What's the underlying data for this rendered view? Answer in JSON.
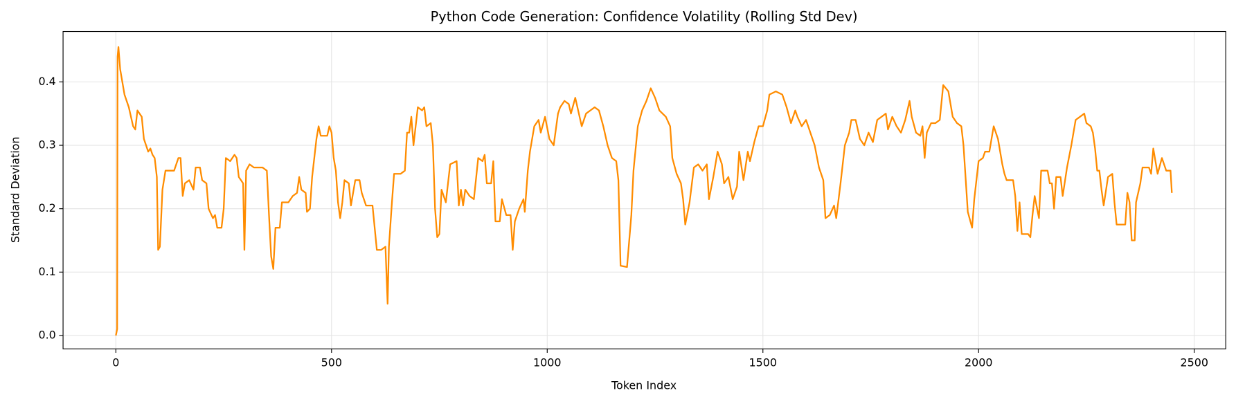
{
  "chart_data": {
    "type": "line",
    "title": "Python Code Generation: Confidence Volatility (Rolling Std Dev)",
    "x_label": "Token Index",
    "y_label": "Standard Deviation",
    "color": "#ff8c00",
    "grid": true,
    "xlim": [
      -122.4,
      2573
    ],
    "ylim": [
      -0.0211,
      0.4795
    ],
    "xticks": [
      0,
      500,
      1000,
      1500,
      2000,
      2500
    ],
    "yticks": [
      {
        "value": 0,
        "label": "0.0"
      },
      0.1,
      0.2,
      0.3,
      0.4
    ],
    "x": [
      0,
      3,
      4,
      6,
      10,
      15,
      20,
      30,
      40,
      45,
      50,
      55,
      60,
      65,
      70,
      75,
      80,
      85,
      90,
      95,
      98,
      102,
      108,
      115,
      125,
      135,
      145,
      150,
      155,
      160,
      170,
      180,
      185,
      195,
      200,
      210,
      215,
      225,
      230,
      235,
      245,
      250,
      255,
      265,
      275,
      280,
      285,
      295,
      298,
      302,
      310,
      320,
      330,
      340,
      350,
      355,
      360,
      365,
      370,
      380,
      385,
      400,
      410,
      420,
      425,
      430,
      440,
      443,
      450,
      455,
      460,
      465,
      470,
      475,
      490,
      495,
      500,
      505,
      510,
      515,
      520,
      525,
      530,
      540,
      545,
      555,
      565,
      570,
      580,
      595,
      605,
      615,
      625,
      630,
      633,
      640,
      645,
      660,
      670,
      675,
      680,
      685,
      690,
      700,
      710,
      715,
      720,
      730,
      735,
      740,
      745,
      750,
      755,
      760,
      765,
      775,
      790,
      795,
      800,
      805,
      810,
      820,
      830,
      840,
      850,
      855,
      860,
      870,
      875,
      880,
      890,
      895,
      905,
      915,
      920,
      925,
      935,
      945,
      948,
      955,
      960,
      970,
      980,
      985,
      995,
      1005,
      1015,
      1025,
      1030,
      1040,
      1050,
      1055,
      1065,
      1075,
      1080,
      1090,
      1100,
      1110,
      1120,
      1130,
      1140,
      1150,
      1160,
      1165,
      1170,
      1185,
      1195,
      1200,
      1210,
      1220,
      1230,
      1240,
      1250,
      1260,
      1275,
      1285,
      1290,
      1300,
      1310,
      1315,
      1320,
      1330,
      1340,
      1350,
      1360,
      1370,
      1375,
      1385,
      1395,
      1405,
      1410,
      1420,
      1430,
      1440,
      1445,
      1455,
      1465,
      1470,
      1480,
      1490,
      1500,
      1510,
      1515,
      1530,
      1545,
      1555,
      1565,
      1575,
      1580,
      1590,
      1600,
      1610,
      1620,
      1630,
      1640,
      1645,
      1655,
      1665,
      1670,
      1680,
      1690,
      1700,
      1705,
      1715,
      1725,
      1735,
      1745,
      1755,
      1765,
      1775,
      1785,
      1790,
      1800,
      1810,
      1820,
      1830,
      1840,
      1845,
      1855,
      1865,
      1870,
      1875,
      1880,
      1890,
      1900,
      1910,
      1918,
      1930,
      1940,
      1950,
      1960,
      1965,
      1975,
      1985,
      1990,
      2000,
      2010,
      2015,
      2025,
      2030,
      2035,
      2045,
      2055,
      2060,
      2065,
      2080,
      2085,
      2090,
      2095,
      2100,
      2115,
      2120,
      2125,
      2130,
      2140,
      2145,
      2160,
      2165,
      2170,
      2175,
      2180,
      2190,
      2195,
      2205,
      2215,
      2225,
      2235,
      2245,
      2250,
      2260,
      2265,
      2270,
      2275,
      2280,
      2285,
      2290,
      2300,
      2310,
      2315,
      2320,
      2340,
      2345,
      2350,
      2355,
      2362,
      2365,
      2375,
      2380,
      2395,
      2400,
      2405,
      2415,
      2425,
      2435,
      2445,
      2448
    ],
    "values": [
      0.0,
      0.01,
      0.44,
      0.455,
      0.42,
      0.4,
      0.38,
      0.36,
      0.33,
      0.325,
      0.355,
      0.35,
      0.345,
      0.31,
      0.3,
      0.29,
      0.295,
      0.285,
      0.28,
      0.25,
      0.135,
      0.14,
      0.23,
      0.26,
      0.26,
      0.26,
      0.28,
      0.28,
      0.22,
      0.24,
      0.245,
      0.23,
      0.265,
      0.265,
      0.245,
      0.24,
      0.2,
      0.185,
      0.19,
      0.17,
      0.17,
      0.2,
      0.28,
      0.275,
      0.285,
      0.28,
      0.25,
      0.24,
      0.135,
      0.26,
      0.27,
      0.265,
      0.265,
      0.265,
      0.26,
      0.19,
      0.125,
      0.105,
      0.17,
      0.17,
      0.21,
      0.21,
      0.22,
      0.225,
      0.25,
      0.23,
      0.225,
      0.195,
      0.2,
      0.25,
      0.28,
      0.31,
      0.33,
      0.315,
      0.315,
      0.33,
      0.32,
      0.28,
      0.26,
      0.21,
      0.185,
      0.21,
      0.245,
      0.24,
      0.205,
      0.245,
      0.245,
      0.225,
      0.205,
      0.205,
      0.135,
      0.135,
      0.14,
      0.05,
      0.14,
      0.21,
      0.255,
      0.255,
      0.26,
      0.32,
      0.32,
      0.345,
      0.3,
      0.36,
      0.355,
      0.36,
      0.33,
      0.335,
      0.3,
      0.2,
      0.155,
      0.16,
      0.23,
      0.22,
      0.21,
      0.27,
      0.275,
      0.205,
      0.23,
      0.205,
      0.23,
      0.22,
      0.215,
      0.28,
      0.275,
      0.285,
      0.24,
      0.24,
      0.275,
      0.18,
      0.18,
      0.215,
      0.19,
      0.19,
      0.135,
      0.18,
      0.2,
      0.215,
      0.195,
      0.26,
      0.29,
      0.33,
      0.34,
      0.32,
      0.345,
      0.31,
      0.3,
      0.35,
      0.36,
      0.37,
      0.365,
      0.35,
      0.375,
      0.345,
      0.33,
      0.35,
      0.355,
      0.36,
      0.355,
      0.33,
      0.3,
      0.28,
      0.275,
      0.245,
      0.11,
      0.108,
      0.19,
      0.26,
      0.33,
      0.355,
      0.37,
      0.39,
      0.375,
      0.355,
      0.345,
      0.33,
      0.28,
      0.255,
      0.24,
      0.215,
      0.175,
      0.21,
      0.265,
      0.27,
      0.26,
      0.27,
      0.215,
      0.25,
      0.29,
      0.27,
      0.24,
      0.25,
      0.215,
      0.235,
      0.29,
      0.245,
      0.29,
      0.275,
      0.305,
      0.33,
      0.33,
      0.355,
      0.38,
      0.385,
      0.38,
      0.36,
      0.335,
      0.355,
      0.345,
      0.33,
      0.34,
      0.32,
      0.3,
      0.265,
      0.245,
      0.185,
      0.19,
      0.205,
      0.185,
      0.24,
      0.3,
      0.32,
      0.34,
      0.34,
      0.31,
      0.3,
      0.32,
      0.305,
      0.34,
      0.345,
      0.35,
      0.325,
      0.345,
      0.33,
      0.32,
      0.34,
      0.37,
      0.345,
      0.32,
      0.315,
      0.33,
      0.28,
      0.32,
      0.335,
      0.335,
      0.34,
      0.395,
      0.385,
      0.345,
      0.335,
      0.33,
      0.3,
      0.195,
      0.17,
      0.215,
      0.275,
      0.28,
      0.29,
      0.29,
      0.31,
      0.33,
      0.31,
      0.27,
      0.255,
      0.245,
      0.245,
      0.22,
      0.165,
      0.21,
      0.16,
      0.16,
      0.155,
      0.19,
      0.22,
      0.185,
      0.26,
      0.26,
      0.24,
      0.24,
      0.2,
      0.25,
      0.25,
      0.22,
      0.265,
      0.3,
      0.34,
      0.345,
      0.35,
      0.335,
      0.33,
      0.32,
      0.295,
      0.26,
      0.26,
      0.23,
      0.205,
      0.25,
      0.255,
      0.21,
      0.175,
      0.175,
      0.225,
      0.21,
      0.15,
      0.15,
      0.21,
      0.24,
      0.265,
      0.265,
      0.255,
      0.295,
      0.255,
      0.28,
      0.26,
      0.26,
      0.225
    ]
  }
}
